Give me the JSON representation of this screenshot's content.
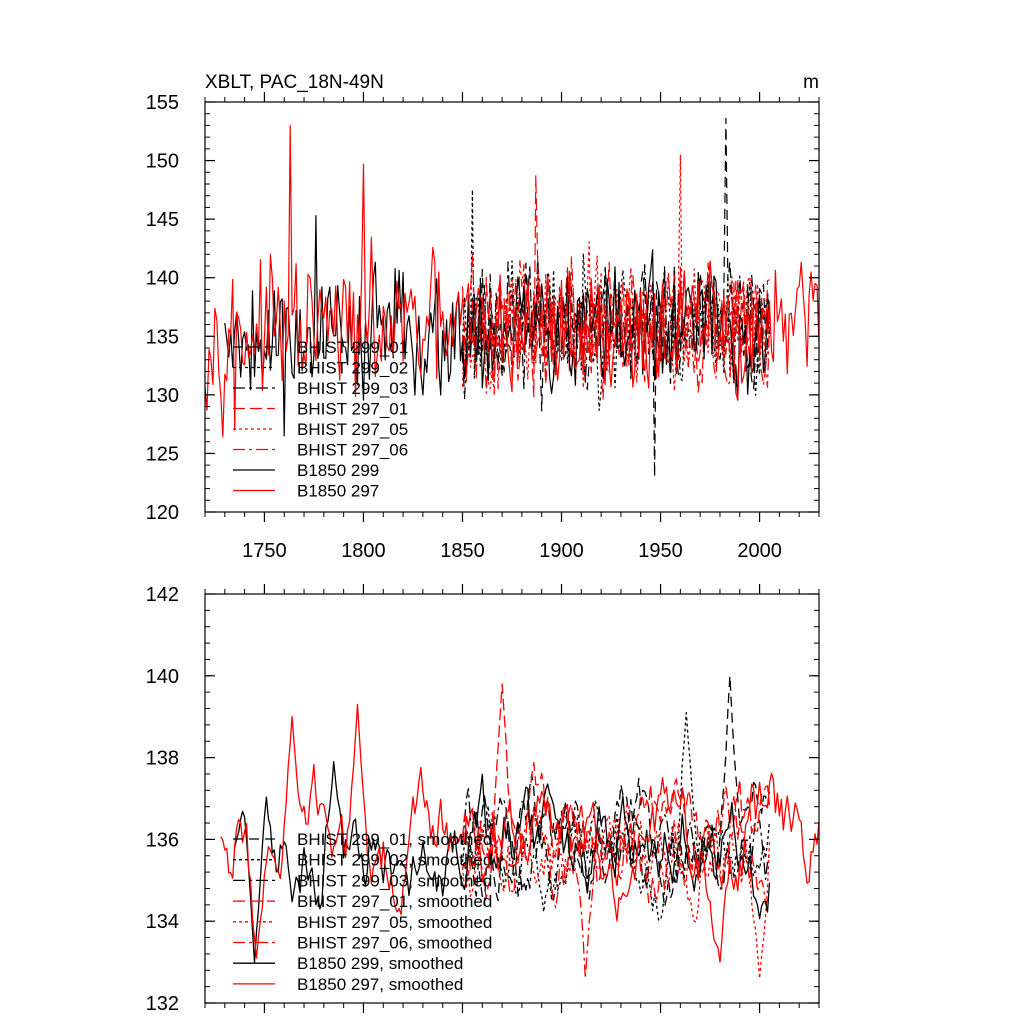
{
  "title": "XBLT, PAC_18N-49N",
  "units": "m",
  "colors": {
    "black": "#000000",
    "red": "#ff0000",
    "background": "#ffffff"
  },
  "chart_data": [
    {
      "type": "line",
      "name": "raw",
      "xlim": [
        1720,
        2030
      ],
      "ylim": [
        120,
        155
      ],
      "xticks": [
        1750,
        1800,
        1850,
        1900,
        1950,
        2000
      ],
      "yticks": [
        120,
        125,
        130,
        135,
        140,
        145,
        150,
        155
      ],
      "ytick_labels": [
        "120",
        "125",
        "130",
        "135",
        "140",
        "145",
        "150",
        "155"
      ],
      "legend": [
        "BHIST 299_01",
        "BHIST 299_02",
        "BHIST 299_03",
        "BHIST 297_01",
        "BHIST 297_05",
        "BHIST 297_06",
        "B1850 299",
        "B1850 297"
      ],
      "series": [
        {
          "name": "BHIST 299_01",
          "color": "#000000",
          "dash": "10,6",
          "x_start": 1850,
          "x_end": 2005,
          "mean": 136.0,
          "amp": 4.6,
          "seed": 11,
          "peaks": [
            [
              1983,
              153.6
            ],
            [
              1947,
              123.0
            ]
          ]
        },
        {
          "name": "BHIST 299_02",
          "color": "#000000",
          "dash": "3,3",
          "x_start": 1850,
          "x_end": 2005,
          "mean": 136.0,
          "amp": 4.6,
          "seed": 23,
          "peaks": [
            [
              1855,
              147.5
            ]
          ]
        },
        {
          "name": "BHIST 299_03",
          "color": "#000000",
          "dash": "12,4,3,4",
          "x_start": 1850,
          "x_end": 2005,
          "mean": 136.0,
          "amp": 4.6,
          "seed": 37,
          "peaks": []
        },
        {
          "name": "BHIST 297_01",
          "color": "#ff0000",
          "dash": "12,5",
          "x_start": 1850,
          "x_end": 2005,
          "mean": 136.0,
          "amp": 4.6,
          "seed": 41,
          "peaks": [
            [
              1887,
              148.7
            ]
          ]
        },
        {
          "name": "BHIST 297_05",
          "color": "#ff0000",
          "dash": "3,3",
          "x_start": 1850,
          "x_end": 2005,
          "mean": 136.0,
          "amp": 4.6,
          "seed": 53,
          "peaks": [
            [
              1960,
              150.5
            ]
          ]
        },
        {
          "name": "BHIST 297_06",
          "color": "#ff0000",
          "dash": "12,4,3,4",
          "x_start": 1850,
          "x_end": 2005,
          "mean": 136.0,
          "amp": 4.6,
          "seed": 67,
          "peaks": []
        },
        {
          "name": "B1850 299",
          "color": "#000000",
          "dash": "",
          "x_start": 1730,
          "x_end": 2005,
          "mean": 135.5,
          "amp": 4.8,
          "seed": 79,
          "peaks": [
            [
              1776,
              145.3
            ],
            [
              1760,
              126.5
            ]
          ]
        },
        {
          "name": "B1850 297",
          "color": "#ff0000",
          "dash": "",
          "x_start": 1720,
          "x_end": 2030,
          "mean": 135.5,
          "amp": 4.8,
          "seed": 97,
          "peaks": [
            [
              1763,
              153.0
            ],
            [
              1800,
              149.7
            ],
            [
              1735,
              127.0
            ]
          ]
        }
      ]
    },
    {
      "type": "line",
      "name": "smoothed",
      "xlim": [
        1720,
        2030
      ],
      "ylim": [
        132,
        142
      ],
      "xticks": [
        1750,
        1800,
        1850,
        1900,
        1950,
        2000
      ],
      "yticks": [
        132,
        134,
        136,
        138,
        140,
        142
      ],
      "ytick_labels": [
        "132",
        "134",
        "136",
        "138",
        "140",
        "142"
      ],
      "legend": [
        "BHIST 299_01, smoothed",
        "BHIST 299_02, smoothed",
        "BHIST 299_03, smoothed",
        "BHIST 297_01, smoothed",
        "BHIST 297_05, smoothed",
        "BHIST 297_06, smoothed",
        "B1850 299, smoothed",
        "B1850 297, smoothed"
      ],
      "series": [
        {
          "name": "BHIST 299_01, smoothed",
          "color": "#000000",
          "dash": "10,6",
          "x_start": 1850,
          "x_end": 2005,
          "mean": 136.0,
          "amp": 1.1,
          "seed": 113,
          "peaks": [
            [
              1985,
              140.0
            ]
          ]
        },
        {
          "name": "BHIST 299_02, smoothed",
          "color": "#000000",
          "dash": "3,3",
          "x_start": 1850,
          "x_end": 2005,
          "mean": 135.8,
          "amp": 1.1,
          "seed": 127,
          "peaks": [
            [
              1963,
              139.1
            ]
          ]
        },
        {
          "name": "BHIST 299_03, smoothed",
          "color": "#000000",
          "dash": "12,4,3,4",
          "x_start": 1850,
          "x_end": 2005,
          "mean": 135.8,
          "amp": 1.1,
          "seed": 139,
          "peaks": []
        },
        {
          "name": "BHIST 297_01, smoothed",
          "color": "#ff0000",
          "dash": "12,5",
          "x_start": 1850,
          "x_end": 2005,
          "mean": 136.0,
          "amp": 1.1,
          "seed": 151,
          "peaks": [
            [
              1870,
              139.8
            ]
          ]
        },
        {
          "name": "BHIST 297_05, smoothed",
          "color": "#ff0000",
          "dash": "3,3",
          "x_start": 1850,
          "x_end": 2005,
          "mean": 135.8,
          "amp": 1.1,
          "seed": 163,
          "peaks": [
            [
              2000,
              132.6
            ]
          ]
        },
        {
          "name": "BHIST 297_06, smoothed",
          "color": "#ff0000",
          "dash": "12,4,3,4",
          "x_start": 1850,
          "x_end": 2005,
          "mean": 135.8,
          "amp": 1.1,
          "seed": 179,
          "peaks": [
            [
              1912,
              132.6
            ]
          ]
        },
        {
          "name": "B1850 299, smoothed",
          "color": "#000000",
          "dash": "",
          "x_start": 1735,
          "x_end": 2005,
          "mean": 135.9,
          "amp": 1.1,
          "seed": 191,
          "peaks": [
            [
              1745,
              133.0
            ],
            [
              1785,
              137.9
            ]
          ]
        },
        {
          "name": "B1850 297, smoothed",
          "color": "#ff0000",
          "dash": "",
          "x_start": 1728,
          "x_end": 2030,
          "mean": 135.9,
          "amp": 1.2,
          "seed": 211,
          "peaks": [
            [
              1746,
              133.1
            ],
            [
              1764,
              139.0
            ],
            [
              1797,
              139.3
            ],
            [
              1980,
              133.0
            ]
          ]
        }
      ]
    }
  ]
}
